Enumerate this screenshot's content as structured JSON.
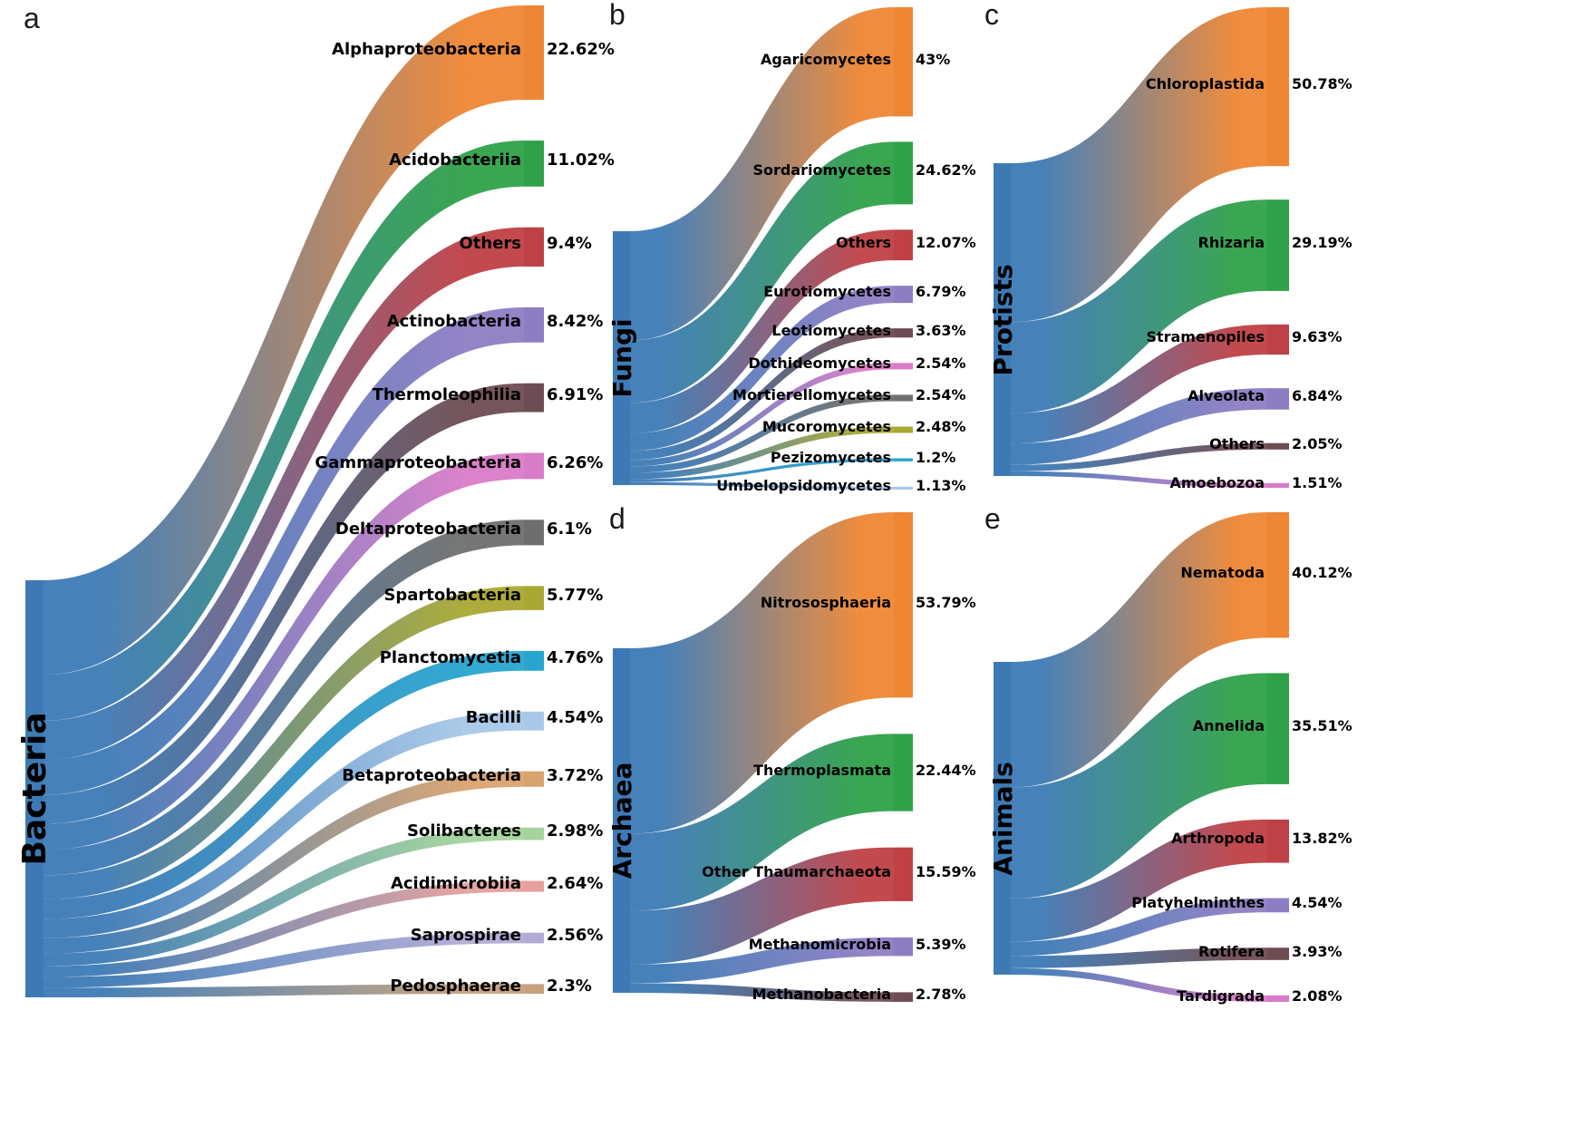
{
  "colors": {
    "source": "#3d7ab5",
    "palette": [
      "#ee8633",
      "#2fa148",
      "#bf4045",
      "#8d7dc3",
      "#6e4c52",
      "#d97bc8",
      "#6e6e6e",
      "#a9a832",
      "#27a5cf",
      "#a8c8e8",
      "#d9a36e",
      "#a4d49c",
      "#e5a09d",
      "#b2abd6",
      "#c6a17c"
    ]
  },
  "chart_data": [
    {
      "type": "sankey",
      "panel": "a",
      "source": "Bacteria",
      "unit": "%",
      "targets": [
        {
          "label": "Alphaproteobacteria",
          "value": 22.62,
          "pct": "22.62%"
        },
        {
          "label": "Acidobacteriia",
          "value": 11.02,
          "pct": "11.02%"
        },
        {
          "label": "Others",
          "value": 9.4,
          "pct": "9.4%"
        },
        {
          "label": "Actinobacteria",
          "value": 8.42,
          "pct": "8.42%"
        },
        {
          "label": "Thermoleophilia",
          "value": 6.91,
          "pct": "6.91%"
        },
        {
          "label": "Gammaproteobacteria",
          "value": 6.26,
          "pct": "6.26%"
        },
        {
          "label": "Deltaproteobacteria",
          "value": 6.1,
          "pct": "6.1%"
        },
        {
          "label": "Spartobacteria",
          "value": 5.77,
          "pct": "5.77%"
        },
        {
          "label": "Planctomycetia",
          "value": 4.76,
          "pct": "4.76%"
        },
        {
          "label": "Bacilli",
          "value": 4.54,
          "pct": "4.54%"
        },
        {
          "label": "Betaproteobacteria",
          "value": 3.72,
          "pct": "3.72%"
        },
        {
          "label": "Solibacteres",
          "value": 2.98,
          "pct": "2.98%"
        },
        {
          "label": "Acidimicrobiia",
          "value": 2.64,
          "pct": "2.64%"
        },
        {
          "label": "Saprospirae",
          "value": 2.56,
          "pct": "2.56%"
        },
        {
          "label": "Pedosphaerae",
          "value": 2.3,
          "pct": "2.3%"
        }
      ]
    },
    {
      "type": "sankey",
      "panel": "b",
      "source": "Fungi",
      "unit": "%",
      "targets": [
        {
          "label": "Agaricomycetes",
          "value": 43,
          "pct": "43%"
        },
        {
          "label": "Sordariomycetes",
          "value": 24.62,
          "pct": "24.62%"
        },
        {
          "label": "Others",
          "value": 12.07,
          "pct": "12.07%"
        },
        {
          "label": "Eurotiomycetes",
          "value": 6.79,
          "pct": "6.79%"
        },
        {
          "label": "Leotiomycetes",
          "value": 3.63,
          "pct": "3.63%"
        },
        {
          "label": "Dothideomycetes",
          "value": 2.54,
          "pct": "2.54%"
        },
        {
          "label": "Mortierellomycetes",
          "value": 2.54,
          "pct": "2.54%"
        },
        {
          "label": "Mucoromycetes",
          "value": 2.48,
          "pct": "2.48%"
        },
        {
          "label": "Pezizomycetes",
          "value": 1.2,
          "pct": "1.2%"
        },
        {
          "label": "Umbelopsidomycetes",
          "value": 1.13,
          "pct": "1.13%"
        }
      ]
    },
    {
      "type": "sankey",
      "panel": "c",
      "source": "Protists",
      "unit": "%",
      "targets": [
        {
          "label": "Chloroplastida",
          "value": 50.78,
          "pct": "50.78%"
        },
        {
          "label": "Rhizaria",
          "value": 29.19,
          "pct": "29.19%"
        },
        {
          "label": "Stramenopiles",
          "value": 9.63,
          "pct": "9.63%"
        },
        {
          "label": "Alveolata",
          "value": 6.84,
          "pct": "6.84%"
        },
        {
          "label": "Others",
          "value": 2.05,
          "pct": "2.05%"
        },
        {
          "label": "Amoebozoa",
          "value": 1.51,
          "pct": "1.51%"
        }
      ]
    },
    {
      "type": "sankey",
      "panel": "d",
      "source": "Archaea",
      "unit": "%",
      "targets": [
        {
          "label": "Nitrososphaeria",
          "value": 53.79,
          "pct": "53.79%"
        },
        {
          "label": "Thermoplasmata",
          "value": 22.44,
          "pct": "22.44%"
        },
        {
          "label": "Other Thaumarchaeota",
          "value": 15.59,
          "pct": "15.59%"
        },
        {
          "label": "Methanomicrobia",
          "value": 5.39,
          "pct": "5.39%"
        },
        {
          "label": "Methanobacteria",
          "value": 2.78,
          "pct": "2.78%"
        }
      ]
    },
    {
      "type": "sankey",
      "panel": "e",
      "source": "Animals",
      "unit": "%",
      "targets": [
        {
          "label": "Nematoda",
          "value": 40.12,
          "pct": "40.12%"
        },
        {
          "label": "Annelida",
          "value": 35.51,
          "pct": "35.51%"
        },
        {
          "label": "Arthropoda",
          "value": 13.82,
          "pct": "13.82%"
        },
        {
          "label": "Platyhelminthes",
          "value": 4.54,
          "pct": "4.54%"
        },
        {
          "label": "Rotifera",
          "value": 3.93,
          "pct": "3.93%"
        },
        {
          "label": "Tardigrada",
          "value": 2.08,
          "pct": "2.08%"
        }
      ]
    }
  ]
}
